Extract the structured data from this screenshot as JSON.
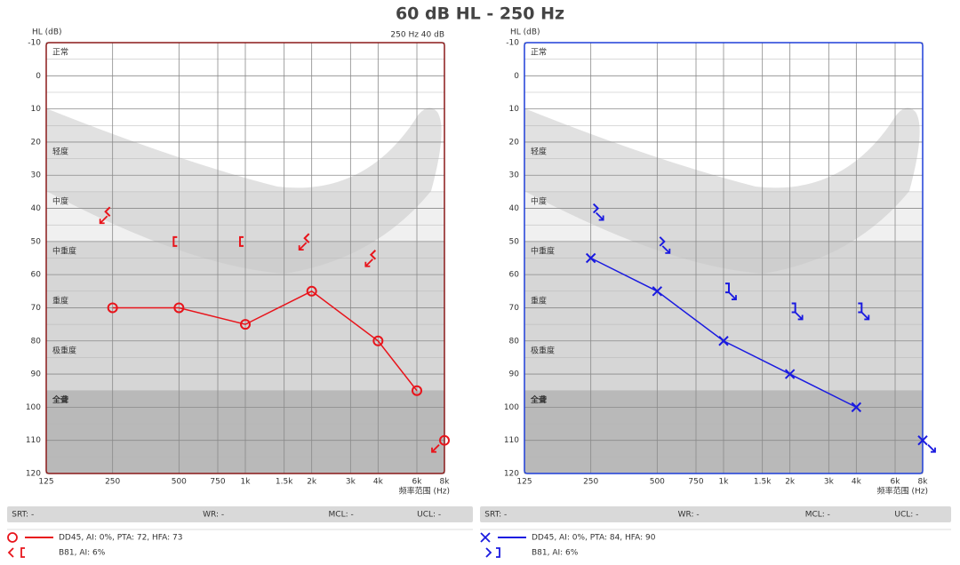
{
  "title": "60 dB HL  -  250 Hz",
  "chart_data": [
    {
      "type": "audiogram",
      "y_label": "HL (dB)",
      "x_label": "频率范围 (Hz)",
      "note": "250 Hz 40 dB",
      "frame_color": "#8b1a1a",
      "log_x": true,
      "grid": true,
      "xlim": [
        125,
        8000
      ],
      "xticks": [
        125,
        250,
        500,
        750,
        {
          "value": 1000,
          "label": "1k"
        },
        {
          "value": 1500,
          "label": "1.5k"
        },
        {
          "value": 2000,
          "label": "2k"
        },
        {
          "value": 3000,
          "label": "3k"
        },
        {
          "value": 4000,
          "label": "4k"
        },
        {
          "value": 6000,
          "label": "6k"
        },
        {
          "value": 8000,
          "label": "8k"
        }
      ],
      "ylim": [
        -10,
        120
      ],
      "yticks": [
        -10,
        0,
        10,
        20,
        30,
        40,
        50,
        60,
        70,
        80,
        90,
        100,
        110,
        120
      ],
      "bands": [
        {
          "label": "正常",
          "from": -10,
          "to": 20,
          "color": "#ffffff"
        },
        {
          "label": "轻度",
          "from": 20,
          "to": 35,
          "color": "#ffffff"
        },
        {
          "label": "中度",
          "from": 35,
          "to": 50,
          "color": "#f0f0f0"
        },
        {
          "label": "中重度",
          "from": 50,
          "to": 65,
          "color": "#d6d6d6"
        },
        {
          "label": "重度",
          "from": 65,
          "to": 80,
          "color": "#d6d6d6"
        },
        {
          "label": "极重度",
          "from": 80,
          "to": 95,
          "color": "#d6d6d6"
        },
        {
          "label": "全聋",
          "from": 95,
          "to": 120,
          "color": "#b9b9b9"
        }
      ],
      "series": [
        {
          "name": "DD45, AI: 0%, PTA: 72, HFA: 73",
          "color": "#e8141b",
          "line": true,
          "x": [
            250,
            500,
            1000,
            2000,
            4000,
            6000,
            8000
          ],
          "values": [
            70,
            70,
            75,
            65,
            80,
            95,
            110
          ],
          "symbols": [
            "o",
            "o",
            "o",
            "o",
            "o",
            "o",
            "o"
          ],
          "no_response": [
            false,
            false,
            false,
            false,
            false,
            false,
            true
          ]
        },
        {
          "name": "B81, AI: 6%",
          "color": "#e8141b",
          "line": false,
          "x": [
            250,
            500,
            1000,
            2000,
            4000
          ],
          "values": [
            41,
            50,
            50,
            49,
            54
          ],
          "symbols": [
            "<",
            "[",
            "[",
            "<",
            "<"
          ],
          "no_response": [
            true,
            false,
            false,
            true,
            true
          ]
        }
      ],
      "info": [
        "SRT: -",
        "WR: -",
        "MCL: -",
        "UCL: -"
      ]
    },
    {
      "type": "audiogram",
      "y_label": "HL (dB)",
      "x_label": "频率范围 (Hz)",
      "frame_color": "#1f3fd8",
      "log_x": true,
      "grid": true,
      "xlim": [
        125,
        8000
      ],
      "xticks": [
        125,
        250,
        500,
        750,
        {
          "value": 1000,
          "label": "1k"
        },
        {
          "value": 1500,
          "label": "1.5k"
        },
        {
          "value": 2000,
          "label": "2k"
        },
        {
          "value": 3000,
          "label": "3k"
        },
        {
          "value": 4000,
          "label": "4k"
        },
        {
          "value": 6000,
          "label": "6k"
        },
        {
          "value": 8000,
          "label": "8k"
        }
      ],
      "ylim": [
        -10,
        120
      ],
      "yticks": [
        -10,
        0,
        10,
        20,
        30,
        40,
        50,
        60,
        70,
        80,
        90,
        100,
        110,
        120
      ],
      "bands": [
        {
          "label": "正常",
          "from": -10,
          "to": 20,
          "color": "#ffffff"
        },
        {
          "label": "轻度",
          "from": 20,
          "to": 35,
          "color": "#ffffff"
        },
        {
          "label": "中度",
          "from": 35,
          "to": 50,
          "color": "#f0f0f0"
        },
        {
          "label": "中重度",
          "from": 50,
          "to": 65,
          "color": "#d6d6d6"
        },
        {
          "label": "重度",
          "from": 65,
          "to": 80,
          "color": "#d6d6d6"
        },
        {
          "label": "极重度",
          "from": 80,
          "to": 95,
          "color": "#d6d6d6"
        },
        {
          "label": "全聋",
          "from": 95,
          "to": 120,
          "color": "#b9b9b9"
        }
      ],
      "series": [
        {
          "name": "DD45, AI: 0%, PTA: 84, HFA: 90",
          "color": "#1a1ae0",
          "line": true,
          "x": [
            250,
            500,
            1000,
            2000,
            4000,
            8000
          ],
          "values": [
            55,
            65,
            80,
            90,
            100,
            110
          ],
          "symbols": [
            "x",
            "x",
            "x",
            "x",
            "x",
            "x"
          ],
          "no_response": [
            false,
            false,
            false,
            false,
            false,
            true
          ]
        },
        {
          "name": "B81, AI: 6%",
          "color": "#1a1ae0",
          "line": false,
          "x": [
            250,
            500,
            1000,
            2000,
            4000
          ],
          "values": [
            40,
            50,
            64,
            70,
            70
          ],
          "symbols": [
            ">",
            ">",
            "]",
            "]",
            "]"
          ],
          "no_response": [
            true,
            true,
            true,
            true,
            true
          ]
        }
      ],
      "info": [
        "SRT: -",
        "WR: -",
        "MCL: -",
        "UCL: -"
      ]
    }
  ]
}
